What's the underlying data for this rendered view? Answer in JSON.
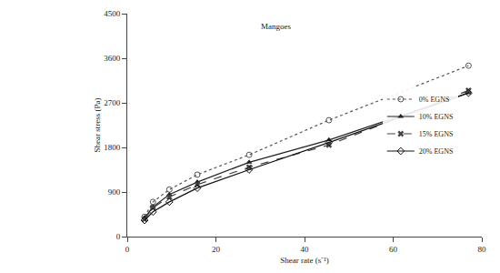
{
  "chart_data": {
    "type": "line",
    "title": "Mangoes",
    "x_label": "Shear rate (s⁻¹)",
    "y_label": "Shear stress (Pa)",
    "xlim": [
      0,
      80
    ],
    "xticks": [
      0,
      20,
      40,
      60,
      80
    ],
    "ylim": [
      0,
      4500
    ],
    "yticks": [
      0,
      900,
      1800,
      2700,
      3600,
      4500
    ],
    "grid": false,
    "legend": "right",
    "series": [
      {
        "name": "0% EGNS",
        "color": "#555555",
        "marker": "circle-open",
        "line_style": "dot",
        "x": [
          3.9,
          5.8,
          9.5,
          15.8,
          27.5,
          45.5,
          77
        ],
        "values": [
          400,
          700,
          950,
          1250,
          1650,
          2350,
          3450
        ]
      },
      {
        "name": "10% EGNS",
        "color": "#222222",
        "marker": "triangle-up",
        "line_style": "solid",
        "x": [
          3.9,
          5.8,
          9.5,
          15.8,
          27.5,
          45.5,
          77
        ],
        "values": [
          380,
          600,
          850,
          1100,
          1500,
          1950,
          2900
        ]
      },
      {
        "name": "15% EGNS",
        "color": "#444444",
        "marker": "x",
        "line_style": "dash",
        "x": [
          3.9,
          5.8,
          9.5,
          15.8,
          27.5,
          45.5,
          77
        ],
        "values": [
          350,
          580,
          800,
          1050,
          1400,
          1850,
          2950
        ]
      },
      {
        "name": "20% EGNS",
        "color": "#111111",
        "marker": "diamond-open",
        "line_style": "solid",
        "x": [
          3.9,
          5.8,
          9.5,
          15.8,
          27.5,
          45.5,
          77
        ],
        "values": [
          330,
          500,
          700,
          980,
          1350,
          1900,
          2900
        ]
      }
    ]
  }
}
